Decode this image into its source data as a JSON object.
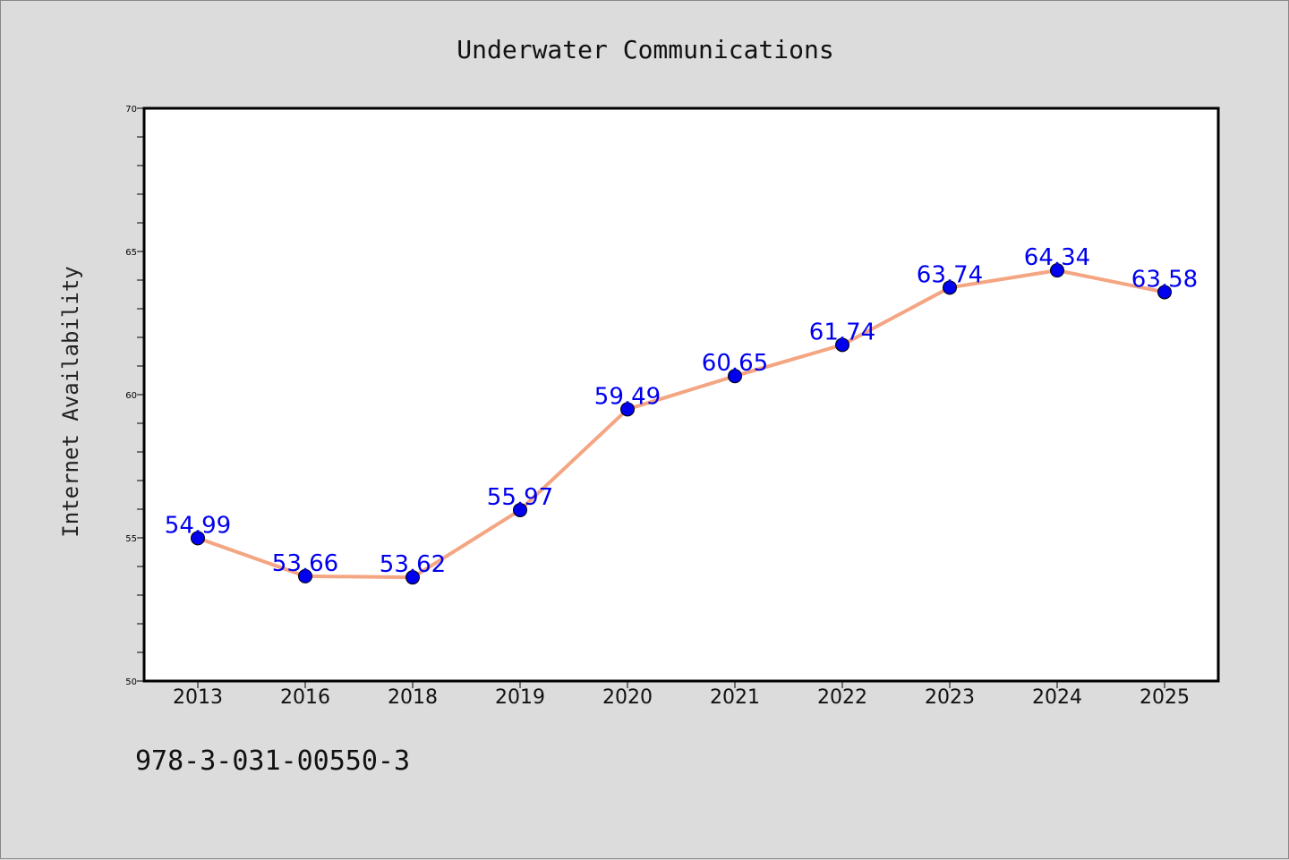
{
  "chart_data": {
    "type": "line",
    "title": "Underwater Communications",
    "xlabel": "",
    "ylabel": "Internet Availability",
    "categories": [
      "2013",
      "2016",
      "2018",
      "2019",
      "2020",
      "2021",
      "2022",
      "2023",
      "2024",
      "2025"
    ],
    "series": [
      {
        "values": [
          54.99,
          53.66,
          53.62,
          55.97,
          59.49,
          60.65,
          61.74,
          63.74,
          64.34,
          63.58
        ]
      }
    ],
    "data_labels": [
      "54.99",
      "53.66",
      "53.62",
      "55.97",
      "59.49",
      "60.65",
      "61.74",
      "63.74",
      "64.34",
      "63.58"
    ],
    "ylim": [
      50,
      70
    ],
    "yticks": [
      "50",
      "55",
      "60",
      "65",
      "70"
    ],
    "grid": false,
    "legend": "none",
    "colors": {
      "line": "#f4a582",
      "marker": "#0000ee",
      "label": "#0000ee",
      "background": "#dcdcdc",
      "plot_background": "#ffffff"
    }
  },
  "footer": {
    "isbn": "978-3-031-00550-3"
  }
}
